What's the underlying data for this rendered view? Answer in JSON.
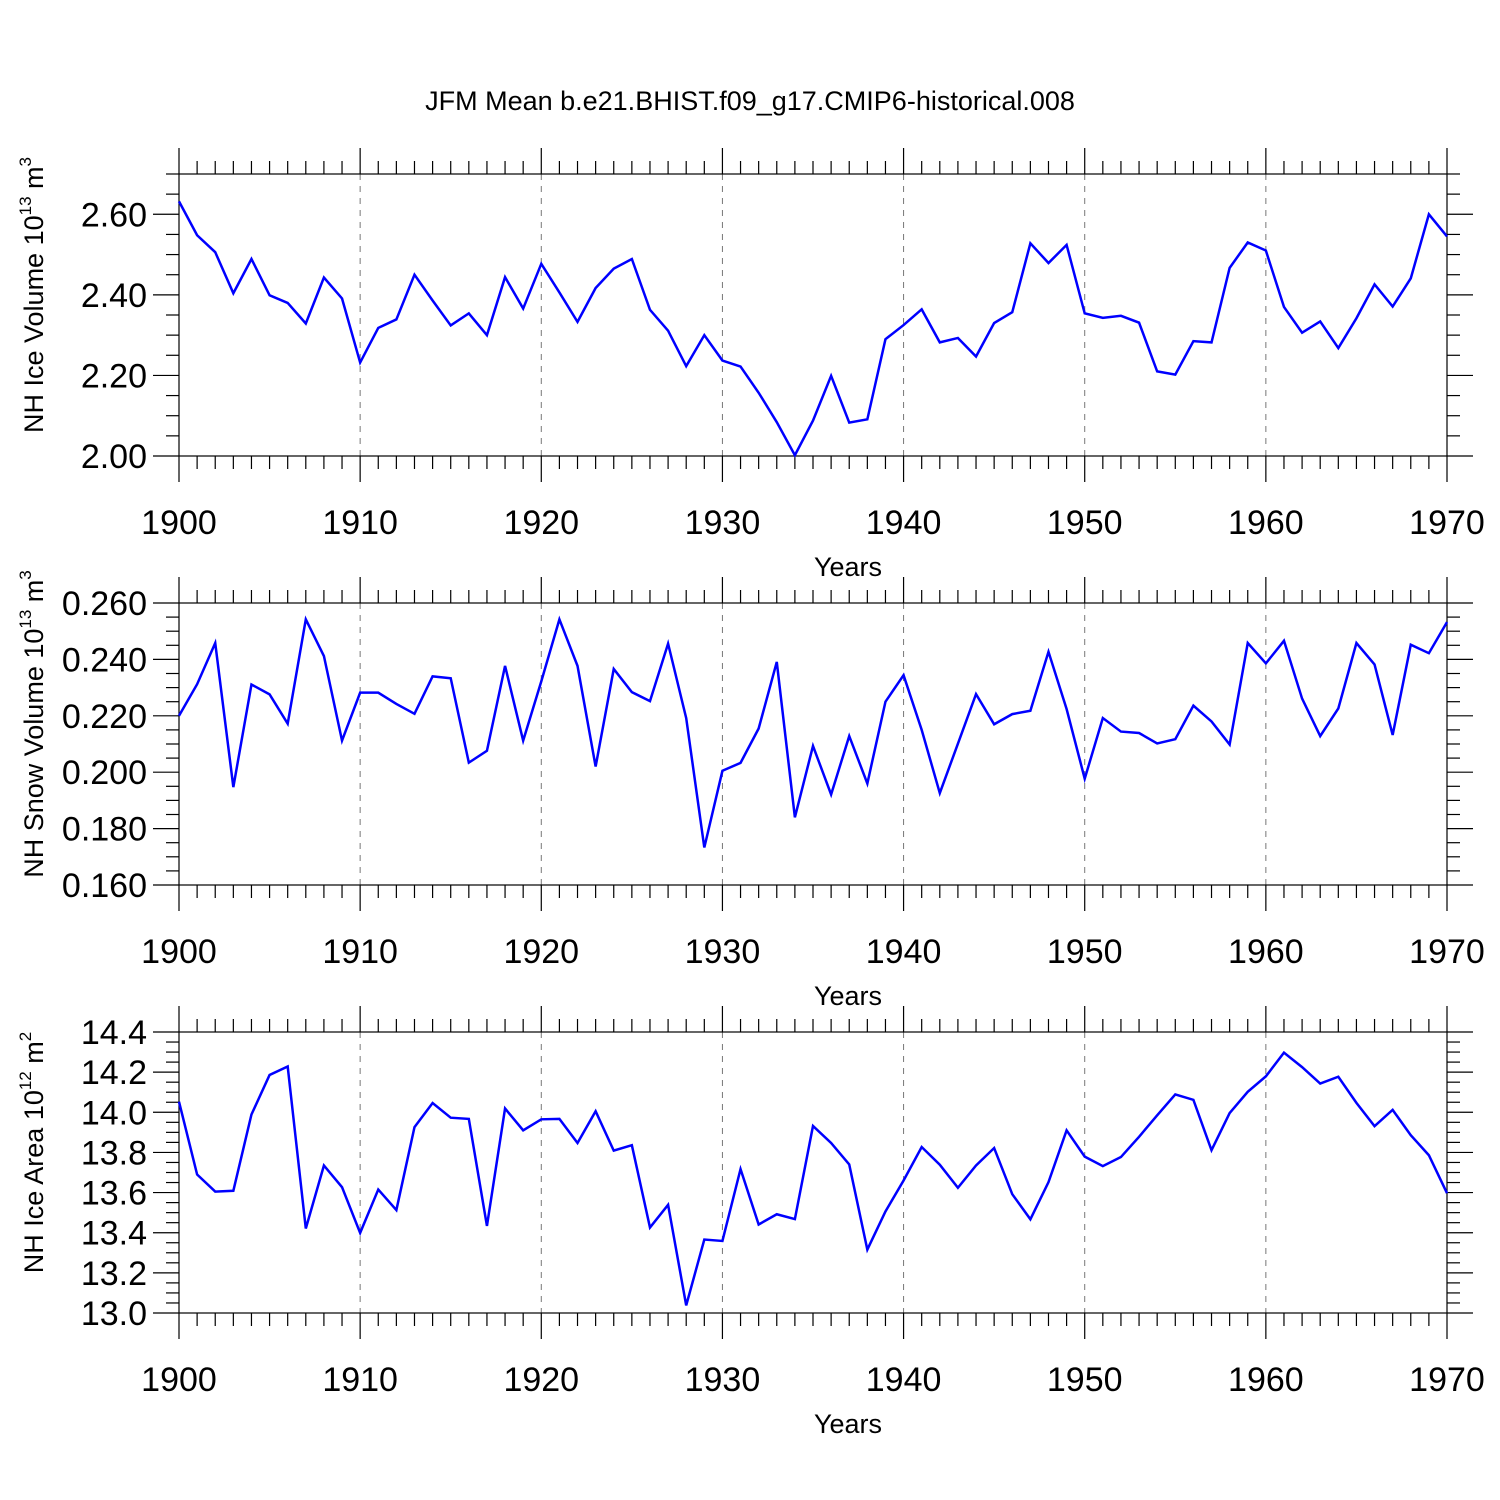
{
  "figure_title": "JFM Mean b.e21.BHIST.f09_g17.CMIP6-historical.008",
  "colors": {
    "line": "#0000ff",
    "grid": "#777777",
    "axis": "#000000"
  },
  "chart_data": [
    {
      "type": "line",
      "title": "",
      "xlabel": "Years",
      "ylabel": "NH Ice Volume 10",
      "ylabel_sup": "13",
      "ylabel_unit": " m",
      "ylabel_unit_sup": "3",
      "xlim": [
        1900,
        1970
      ],
      "ylim": [
        2.0,
        2.7
      ],
      "yticks": [
        2.0,
        2.2,
        2.4,
        2.6
      ],
      "ytick_labels": [
        "2.00",
        "2.20",
        "2.40",
        "2.60"
      ],
      "yminor_step": 0.05,
      "xticks": [
        1900,
        1910,
        1920,
        1930,
        1940,
        1950,
        1960,
        1970
      ],
      "xtick_labels": [
        "1900",
        "1910",
        "1920",
        "1930",
        "1940",
        "1950",
        "1960",
        "1970"
      ],
      "grid": "vertical dashed at major x ticks",
      "x_start": 1900,
      "values": [
        2.632,
        2.548,
        2.506,
        2.404,
        2.489,
        2.399,
        2.38,
        2.329,
        2.443,
        2.391,
        2.232,
        2.318,
        2.339,
        2.45,
        2.386,
        2.324,
        2.354,
        2.3,
        2.444,
        2.366,
        2.477,
        2.406,
        2.333,
        2.417,
        2.465,
        2.489,
        2.363,
        2.311,
        2.223,
        2.3,
        2.237,
        2.222,
        2.157,
        2.084,
        2.002,
        2.088,
        2.199,
        2.083,
        2.091,
        2.29,
        2.325,
        2.364,
        2.282,
        2.293,
        2.247,
        2.33,
        2.357,
        2.528,
        2.479,
        2.524,
        2.354,
        2.343,
        2.348,
        2.331,
        2.21,
        2.202,
        2.285,
        2.282,
        2.467,
        2.53,
        2.51,
        2.37,
        2.306,
        2.334,
        2.268,
        2.342,
        2.426,
        2.371,
        2.441,
        2.6,
        2.545
      ]
    },
    {
      "type": "line",
      "title": "",
      "xlabel": "Years",
      "ylabel": "NH Snow Volume 10",
      "ylabel_sup": "13",
      "ylabel_unit": " m",
      "ylabel_unit_sup": "3",
      "xlim": [
        1900,
        1970
      ],
      "ylim": [
        0.16,
        0.26
      ],
      "yticks": [
        0.16,
        0.18,
        0.2,
        0.22,
        0.24,
        0.26
      ],
      "ytick_labels": [
        "0.160",
        "0.180",
        "0.200",
        "0.220",
        "0.240",
        "0.260"
      ],
      "yminor_step": 0.005,
      "xticks": [
        1900,
        1910,
        1920,
        1930,
        1940,
        1950,
        1960,
        1970
      ],
      "xtick_labels": [
        "1900",
        "1910",
        "1920",
        "1930",
        "1940",
        "1950",
        "1960",
        "1970"
      ],
      "grid": "vertical dashed at major x ticks",
      "x_start": 1900,
      "values": [
        0.22,
        0.2312,
        0.2458,
        0.1947,
        0.2311,
        0.2276,
        0.2172,
        0.2542,
        0.2412,
        0.2112,
        0.2282,
        0.2282,
        0.2242,
        0.2207,
        0.234,
        0.2333,
        0.2034,
        0.2076,
        0.2377,
        0.2112,
        0.2322,
        0.2542,
        0.2377,
        0.202,
        0.2366,
        0.2284,
        0.2252,
        0.2456,
        0.2192,
        0.1733,
        0.2005,
        0.2033,
        0.2155,
        0.2391,
        0.184,
        0.2093,
        0.1921,
        0.2128,
        0.196,
        0.225,
        0.2344,
        0.215,
        0.1926,
        0.2101,
        0.2277,
        0.217,
        0.2206,
        0.2218,
        0.2427,
        0.2224,
        0.1977,
        0.2192,
        0.2144,
        0.2139,
        0.2102,
        0.2117,
        0.2236,
        0.218,
        0.2098,
        0.2458,
        0.2386,
        0.2466,
        0.2261,
        0.2128,
        0.2226,
        0.2458,
        0.2382,
        0.2132,
        0.2452,
        0.2422,
        0.2532
      ]
    },
    {
      "type": "line",
      "title": "",
      "xlabel": "Years",
      "ylabel": "NH Ice Area 10",
      "ylabel_sup": "12",
      "ylabel_unit": " m",
      "ylabel_unit_sup": "2",
      "xlim": [
        1900,
        1970
      ],
      "ylim": [
        13.0,
        14.4
      ],
      "yticks": [
        13.0,
        13.2,
        13.4,
        13.6,
        13.8,
        14.0,
        14.2,
        14.4
      ],
      "ytick_labels": [
        "13.0",
        "13.2",
        "13.4",
        "13.6",
        "13.8",
        "14.0",
        "14.2",
        "14.4"
      ],
      "yminor_step": 0.05,
      "xticks": [
        1900,
        1910,
        1920,
        1930,
        1940,
        1950,
        1960,
        1970
      ],
      "xtick_labels": [
        "1900",
        "1910",
        "1920",
        "1930",
        "1940",
        "1950",
        "1960",
        "1970"
      ],
      "grid": "vertical dashed at major x ticks",
      "x_start": 1900,
      "values": [
        14.053,
        13.69,
        13.605,
        13.609,
        13.989,
        14.186,
        14.228,
        13.421,
        13.735,
        13.627,
        13.399,
        13.615,
        13.513,
        13.926,
        14.046,
        13.973,
        13.967,
        13.434,
        14.019,
        13.91,
        13.965,
        13.967,
        13.847,
        14.005,
        13.809,
        13.836,
        13.426,
        13.539,
        13.038,
        13.366,
        13.359,
        13.717,
        13.441,
        13.492,
        13.468,
        13.932,
        13.847,
        13.74,
        13.316,
        13.506,
        13.66,
        13.827,
        13.739,
        13.624,
        13.735,
        13.822,
        13.592,
        13.467,
        13.652,
        13.91,
        13.779,
        13.732,
        13.777,
        13.878,
        13.985,
        14.089,
        14.062,
        13.811,
        13.996,
        14.102,
        14.179,
        14.297,
        14.225,
        14.143,
        14.177,
        14.047,
        13.931,
        14.012,
        13.886,
        13.786,
        13.597
      ]
    }
  ]
}
